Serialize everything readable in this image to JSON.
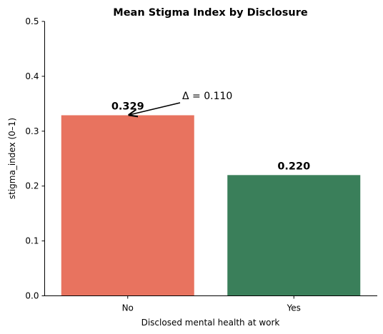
{
  "chart_data": {
    "type": "bar",
    "title": "Mean Stigma Index by Disclosure",
    "xlabel": "Disclosed mental health at work",
    "ylabel": "stigma_index (0–1)",
    "categories": [
      "No",
      "Yes"
    ],
    "values": [
      0.329,
      0.22
    ],
    "value_labels": [
      "0.329",
      "0.220"
    ],
    "colors": [
      "#e8735f",
      "#3a7f5a"
    ],
    "ylim": [
      0,
      0.5
    ],
    "yticks": [
      0.0,
      0.1,
      0.2,
      0.3,
      0.4,
      0.5
    ],
    "ytick_labels": [
      "0.0",
      "0.1",
      "0.2",
      "0.3",
      "0.4",
      "0.5"
    ],
    "grid": false,
    "annotation": {
      "text": "Δ = 0.110",
      "points_to_category": "No",
      "points_to_value": 0.329
    }
  }
}
